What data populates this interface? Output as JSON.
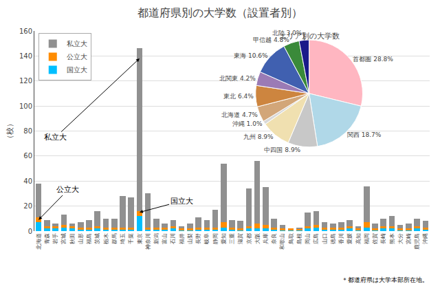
{
  "chart_data": [
    {
      "type": "bar",
      "stacked": true,
      "title": "都道府県別の大学数（設置者別）",
      "y_label": "（校）",
      "categories": [
        "北海道",
        "青森",
        "岩手",
        "宮城",
        "秋田",
        "山形",
        "福島",
        "茨城",
        "栃木",
        "群馬",
        "埼玉",
        "千葉",
        "東京",
        "神奈川",
        "新潟",
        "富山",
        "石川",
        "福井",
        "山梨",
        "長野",
        "岐阜",
        "静岡",
        "愛知",
        "三重",
        "滋賀",
        "京都",
        "大阪",
        "兵庫",
        "奈良",
        "和歌山",
        "鳥取",
        "島根",
        "岡山",
        "広島",
        "山口",
        "徳島",
        "香川",
        "愛媛",
        "高知",
        "福岡",
        "佐賀",
        "長崎",
        "熊本",
        "大分",
        "宮崎",
        "鹿児島",
        "沖縄"
      ],
      "series": [
        {
          "name": "国立大",
          "color": "#00BFFF",
          "values": [
            7,
            2,
            2,
            3,
            2,
            1,
            1,
            2,
            1,
            1,
            1,
            1,
            12,
            1,
            1,
            1,
            2,
            1,
            1,
            1,
            1,
            1,
            3,
            1,
            1,
            2,
            2,
            2,
            1,
            1,
            1,
            1,
            2,
            3,
            1,
            1,
            1,
            2,
            1,
            3,
            1,
            2,
            2,
            1,
            1,
            2,
            1
          ]
        },
        {
          "name": "公立大",
          "color": "#FF8C00",
          "values": [
            4,
            2,
            2,
            2,
            2,
            2,
            2,
            2,
            2,
            2,
            2,
            2,
            4,
            2,
            2,
            2,
            2,
            1,
            1,
            2,
            2,
            2,
            4,
            2,
            1,
            2,
            4,
            3,
            2,
            1,
            1,
            1,
            2,
            2,
            2,
            2,
            2,
            2,
            1,
            4,
            1,
            2,
            2,
            1,
            1,
            2,
            2
          ]
        },
        {
          "name": "私立大",
          "color": "#909090",
          "values": [
            27,
            5,
            2,
            8,
            2,
            4,
            6,
            12,
            7,
            7,
            25,
            24,
            130,
            27,
            7,
            3,
            5,
            2,
            4,
            8,
            6,
            14,
            47,
            6,
            6,
            30,
            50,
            30,
            7,
            3,
            0,
            1,
            11,
            11,
            4,
            3,
            4,
            5,
            2,
            29,
            4,
            6,
            8,
            3,
            4,
            6,
            5
          ]
        }
      ],
      "ylim": [
        0,
        160
      ],
      "yticks": [
        0,
        20,
        40,
        60,
        80,
        100,
        120,
        140,
        160
      ],
      "grid": true,
      "legend": "upper left",
      "annotations": [
        {
          "text": "私立大",
          "x": 12,
          "y": 138,
          "text_x": 2.0,
          "text_y": 75
        },
        {
          "text": "公立大",
          "x": 0,
          "y": 9,
          "text_x": 3.5,
          "text_y": 33
        },
        {
          "text": "国立大",
          "x": 12,
          "y": 15,
          "text_x": 17.0,
          "text_y": 24
        }
      ],
      "footnote": "＊都道府県は大学本部所在地。"
    },
    {
      "type": "pie",
      "title": "エリア別の大学数",
      "categories": [
        "首都圏",
        "関西",
        "中四国",
        "九州",
        "沖縄",
        "北海道",
        "東北",
        "北関東",
        "東海",
        "甲信越",
        "北陸"
      ],
      "values": [
        28.8,
        18.7,
        8.9,
        8.9,
        1.0,
        4.7,
        6.4,
        4.2,
        10.6,
        4.8,
        3.0
      ],
      "value_labels": [
        "28.8%",
        "18.7%",
        "8.9%",
        "8.9%",
        "1.0%",
        "4.7%",
        "6.4%",
        "4.2%",
        "10.6%",
        "4.8%",
        "3.0%"
      ],
      "colors": [
        "#FFB6C1",
        "#B0D8E8",
        "#C8C8C8",
        "#F0E0B0",
        "#D8D8D8",
        "#D2A679",
        "#CD853F",
        "#9B7BB5",
        "#4060B0",
        "#3A8A3A",
        "#1A1A8A"
      ]
    }
  ]
}
